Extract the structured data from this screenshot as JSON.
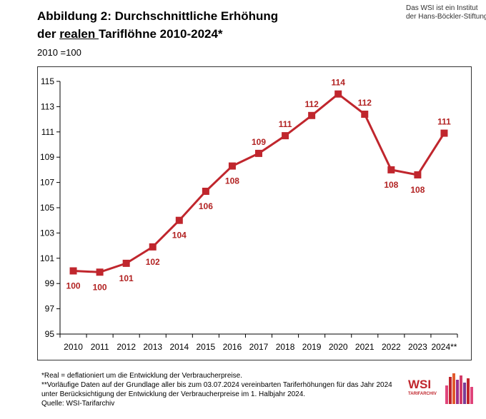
{
  "header": {
    "title_line1": "Abbildung 2: Durchschnittliche Erhöhung",
    "title_line2_prefix": "der ",
    "title_line2_underlined": "realen ",
    "title_line2_suffix": "Tariflöhne 2010-2024*",
    "subtitle": "2010 =100",
    "institute_line1": "Das WSI ist ein Institut",
    "institute_line2": "der Hans-Böckler-Stiftung"
  },
  "footer": {
    "note1": "*Real = deflationiert um die Entwicklung der Verbraucherpreise.",
    "note2": "**Vorläufige Daten auf der Grundlage aller bis zum 03.07.2024 vereinbarten Tariferhöhungen für das Jahr 2024",
    "note3": "unter Berücksichtigung der Entwicklung der Verbraucherpreise im 1. Halbjahr 2024.",
    "source": "Quelle: WSI-Tarifarchiv"
  },
  "logo": {
    "word": "WSI",
    "sub": "TARIFARCHIV"
  },
  "colors": {
    "series": "#c0262d",
    "axis": "#000000",
    "label": "#b22222"
  },
  "chart_data": {
    "type": "line",
    "title": "Abbildung 2: Durchschnittliche Erhöhung der realen Tariflöhne 2010-2024*",
    "xlabel": "",
    "ylabel": "2010 =100",
    "categories": [
      "2010",
      "2011",
      "2012",
      "2013",
      "2014",
      "2015",
      "2016",
      "2017",
      "2018",
      "2019",
      "2020",
      "2021",
      "2022",
      "2023",
      "2024**"
    ],
    "series": [
      {
        "name": "Reale Tariflöhne",
        "values": [
          100.0,
          99.9,
          100.6,
          101.9,
          104.0,
          106.3,
          108.3,
          109.3,
          110.7,
          112.3,
          114.0,
          112.4,
          108.0,
          107.6,
          110.9
        ],
        "labels": [
          "100",
          "100",
          "101",
          "102",
          "104",
          "106",
          "108",
          "109",
          "111",
          "112",
          "114",
          "112",
          "108",
          "108",
          "111"
        ],
        "label_positions": [
          "below",
          "below",
          "below",
          "below",
          "below",
          "below",
          "below",
          "above",
          "above",
          "above",
          "above",
          "above",
          "below",
          "below",
          "above"
        ]
      }
    ],
    "ylim": [
      95,
      115
    ],
    "yticks": [
      95,
      97,
      99,
      101,
      103,
      105,
      107,
      109,
      111,
      113,
      115
    ],
    "grid": false,
    "legend": "none"
  }
}
